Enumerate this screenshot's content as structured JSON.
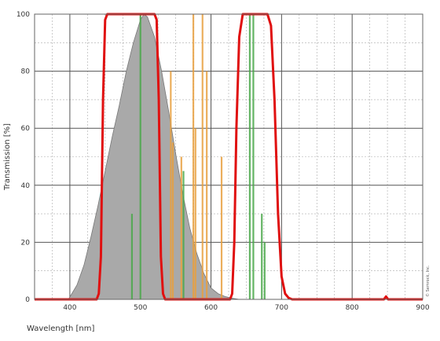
{
  "chart_data": {
    "type": "line",
    "title": "",
    "xlabel": "Wavelength [nm]",
    "ylabel": "Transmission [%]",
    "xlim": [
      350,
      900
    ],
    "ylim": [
      0,
      100
    ],
    "x_ticks": [
      400,
      500,
      600,
      700,
      800,
      900
    ],
    "y_ticks": [
      0,
      20,
      40,
      60,
      80,
      100
    ],
    "grid": true,
    "legend": "none",
    "credit": "© Semrock, Inc.",
    "colors": {
      "filter": "#e01010",
      "area": "#a9a9a9",
      "green_line": "#4aa84a",
      "orange_line": "#e8a040",
      "grid_major": "#555555",
      "grid_minor": "#aaaaaa"
    },
    "series": [
      {
        "type": "area",
        "x": [
          398,
          410,
          420,
          430,
          440,
          450,
          460,
          470,
          480,
          490,
          500,
          505,
          510,
          520,
          530,
          540,
          550,
          560,
          570,
          580,
          590,
          600,
          610,
          620,
          630,
          640
        ],
        "y": [
          0,
          5,
          12,
          22,
          33,
          45,
          57,
          68,
          80,
          90,
          98,
          100,
          99,
          92,
          80,
          66,
          51,
          37,
          25,
          16,
          9,
          4,
          2,
          1,
          0.4,
          0
        ]
      },
      {
        "type": "line",
        "x": [
          350,
          438,
          441,
          444,
          447,
          450,
          453,
          520,
          523,
          526,
          529,
          532,
          535,
          627,
          630,
          633,
          636,
          640,
          645,
          680,
          685,
          690,
          695,
          700,
          705,
          710,
          715,
          845,
          848,
          851,
          900
        ],
        "y": [
          0,
          0,
          2,
          15,
          70,
          98,
          100,
          100,
          98,
          70,
          15,
          2,
          0,
          0,
          2,
          20,
          60,
          92,
          100,
          100,
          96,
          70,
          30,
          8,
          2,
          0.5,
          0,
          0,
          1,
          0,
          0
        ]
      },
      {
        "type": "stem",
        "x": [
          488,
          500,
          561,
          655,
          660,
          672,
          676
        ],
        "y": [
          30,
          100,
          45,
          100,
          100,
          30,
          20
        ]
      },
      {
        "type": "stem",
        "x": [
          543,
          546,
          558,
          575,
          578,
          588,
          594,
          615
        ],
        "y": [
          80,
          55,
          50,
          100,
          60,
          100,
          80,
          50
        ]
      }
    ]
  }
}
